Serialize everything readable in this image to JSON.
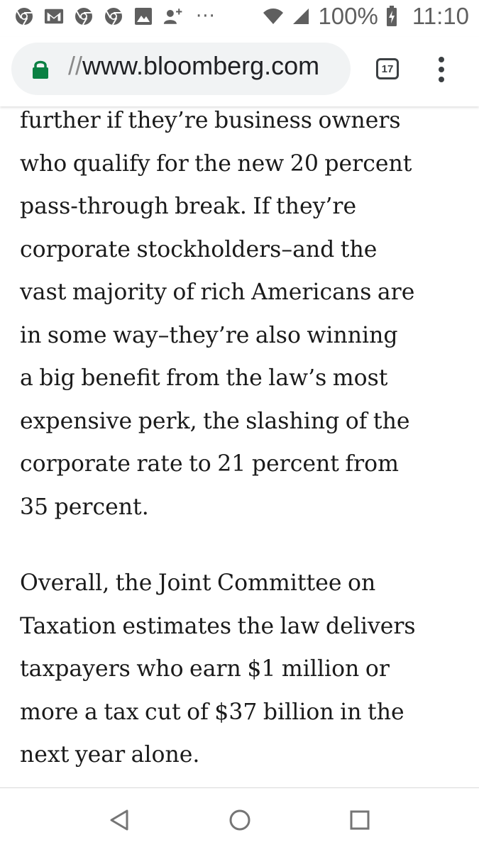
{
  "status_bar": {
    "left_icons": [
      "chrome-icon",
      "gmail-icon",
      "chrome-icon",
      "chrome-icon",
      "image-icon",
      "add-person-icon"
    ],
    "more": "···",
    "battery_percent": "100%",
    "time": "11:10"
  },
  "browser": {
    "url_prefix": "//",
    "url_domain": "www.bloomberg.com",
    "tab_count": "17"
  },
  "article": {
    "paragraph1_lines": [
      "further if they’re business owners",
      "who qualify for the new 20 percent",
      "pass-through break. If they’re",
      "corporate stockholders–and the",
      "vast majority of rich Americans are",
      "in some way–they’re also winning",
      "a big benefit from the law’s most",
      "expensive perk, the slashing of the",
      "corporate rate to 21 percent from",
      "35 percent."
    ],
    "paragraph2_lines": [
      "Overall, the Joint Committee on",
      "Taxation estimates the law delivers",
      "taxpayers who earn $1 million or",
      "more a tax cut of $37 billion in the",
      "next year alone."
    ]
  },
  "colors": {
    "status_icon": "#5f5f5f",
    "url_bar_bg": "#f1f3f4",
    "lock_green": "#0b8043",
    "text": "#1a1a1a",
    "nav_icon": "#757575"
  }
}
